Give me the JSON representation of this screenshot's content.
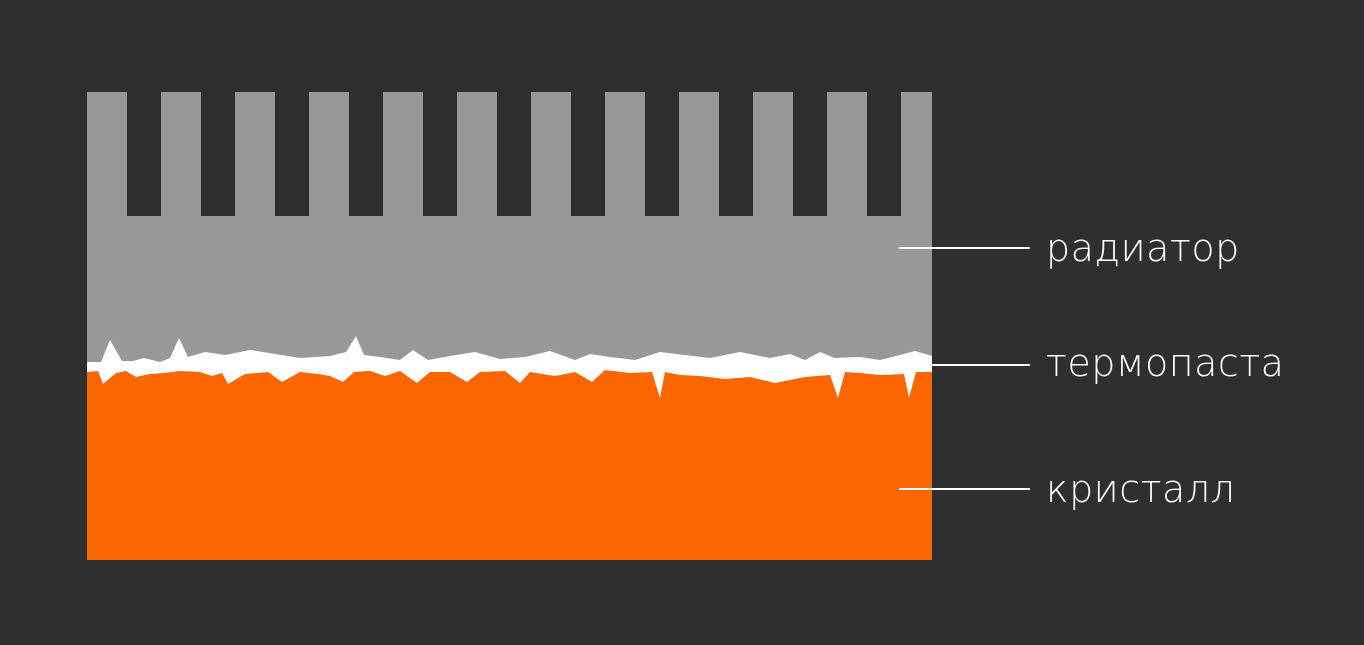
{
  "labels": {
    "radiator": "радиатор",
    "thermal_paste": "термопаста",
    "crystal": "кристалл"
  },
  "colors": {
    "background": "#2e2f31",
    "radiator": "#97989a",
    "crystal": "#f96602",
    "thermal_paste": "#ffffff",
    "leader_line": "#ffffff"
  }
}
